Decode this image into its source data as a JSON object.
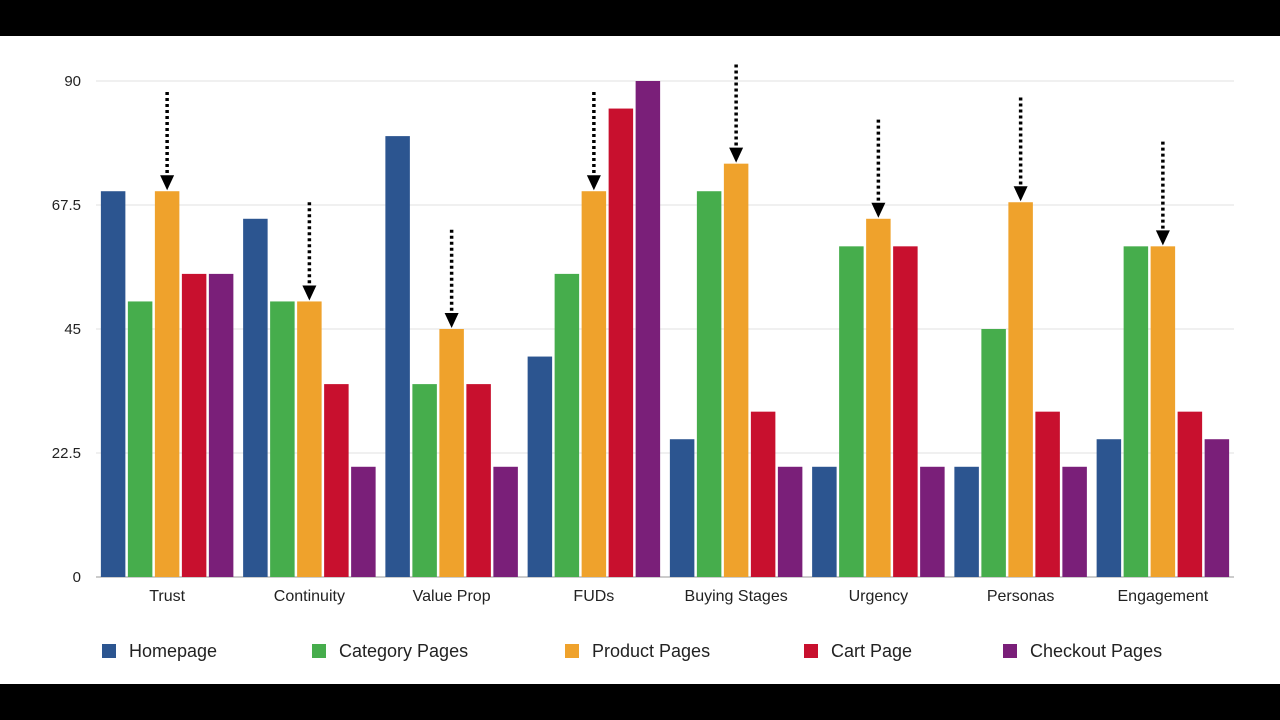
{
  "chart_data": {
    "type": "bar",
    "title": "",
    "xlabel": "",
    "ylabel": "",
    "ylim": [
      0,
      90
    ],
    "yticks": [
      "0",
      "22.5",
      "45",
      "67.5",
      "90"
    ],
    "grid": true,
    "legend_position": "bottom",
    "categories": [
      "Trust",
      "Continuity",
      "Value Prop",
      "FUDs",
      "Buying Stages",
      "Urgency",
      "Personas",
      "Engagement"
    ],
    "series": [
      {
        "name": "Homepage",
        "color": "#2c5590",
        "values": [
          70,
          65,
          80,
          40,
          25,
          20,
          20,
          25
        ]
      },
      {
        "name": "Category Pages",
        "color": "#46ad4c",
        "values": [
          50,
          50,
          35,
          55,
          70,
          60,
          45,
          60
        ]
      },
      {
        "name": "Product Pages",
        "color": "#efa22c",
        "values": [
          70,
          50,
          45,
          70,
          75,
          65,
          68,
          60
        ]
      },
      {
        "name": "Cart Page",
        "color": "#c8102e",
        "values": [
          55,
          35,
          35,
          85,
          30,
          60,
          30,
          30
        ]
      },
      {
        "name": "Checkout Pages",
        "color": "#7a1f79",
        "values": [
          55,
          20,
          20,
          90,
          20,
          20,
          20,
          25
        ]
      }
    ],
    "annotations": {
      "type": "dotted-arrow",
      "series": "Product Pages",
      "arrow_start": [
        88,
        68,
        63,
        88,
        93,
        83,
        87,
        79
      ]
    }
  }
}
